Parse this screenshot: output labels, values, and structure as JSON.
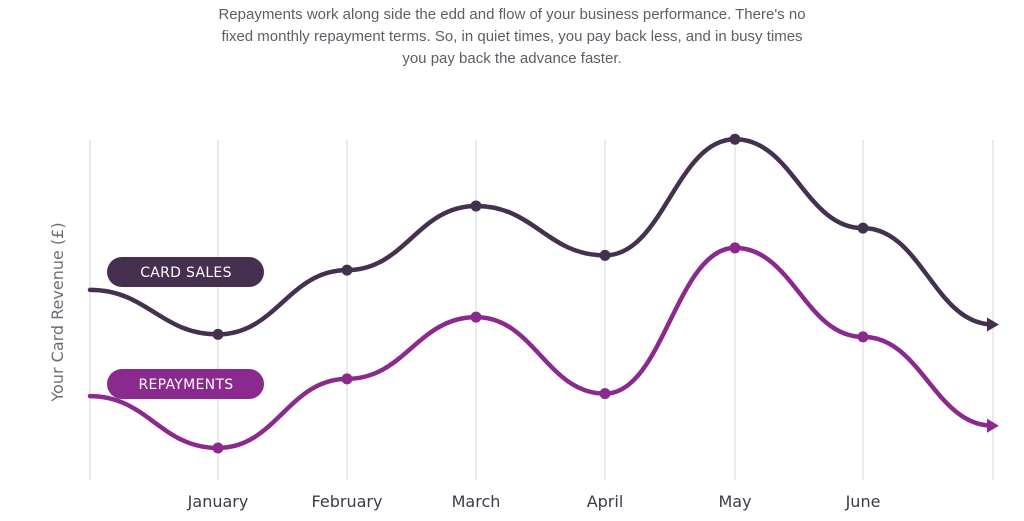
{
  "intro": {
    "line1": "Repayments work along side the edd and flow of your business performance. There's no",
    "line2": "fixed monthly repayment terms. So, in quiet times, you pay back less, and in busy times",
    "line3": "you pay back the advance faster."
  },
  "chart_data": {
    "type": "line",
    "ylabel": "Your Card Revenue (£)",
    "xlabel": "",
    "categories": [
      "January",
      "February",
      "March",
      "April",
      "May",
      "June"
    ],
    "y_ticks_shown": false,
    "grid": "vertical",
    "series": [
      {
        "name": "CARD SALES",
        "color": "#45314f",
        "start_value": 6.4,
        "values": [
          4.6,
          7.2,
          9.8,
          7.8,
          12.5,
          8.9
        ],
        "end_value": 5.0
      },
      {
        "name": "REPAYMENTS",
        "color": "#8b2a8e",
        "start_value": 2.1,
        "values": [
          0.0,
          2.8,
          5.3,
          2.2,
          8.1,
          4.5
        ],
        "end_value": 0.9
      }
    ]
  }
}
